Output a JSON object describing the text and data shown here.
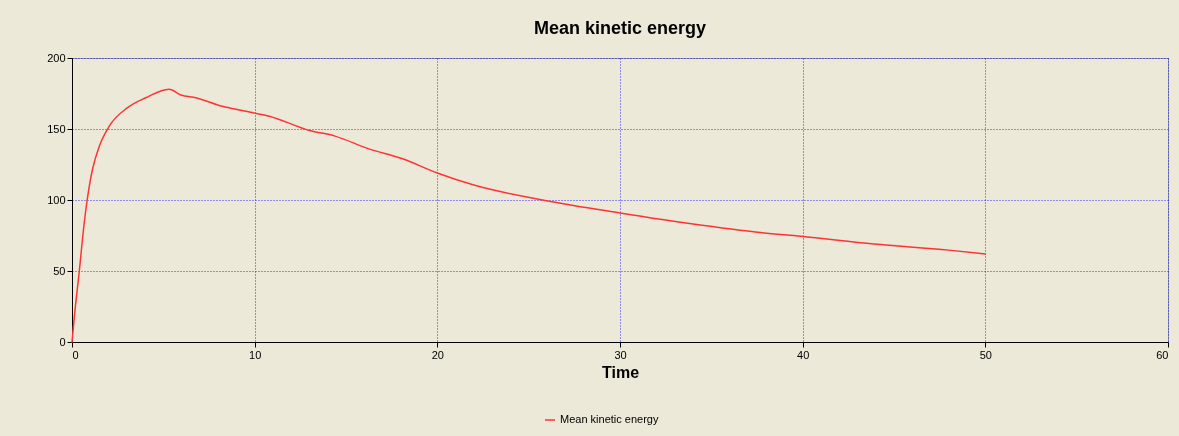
{
  "chart_data": {
    "type": "line",
    "title": "Mean kinetic energy",
    "xlabel": "Time",
    "xlim": [
      0,
      60
    ],
    "xticks": [
      0,
      10,
      20,
      30,
      40,
      50,
      60
    ],
    "ylim": [
      0,
      200
    ],
    "yticks": [
      0,
      50,
      100,
      150,
      200
    ],
    "grid": true,
    "legend": "bottom",
    "line_style": "solid",
    "marker": "none",
    "series": [
      {
        "name": "Mean kinetic energy",
        "color": "#ff3333",
        "x": [
          0,
          0.13,
          0.4,
          0.67,
          0.95,
          1.13,
          1.5,
          2.04,
          3.04,
          4.04,
          5.32,
          5.96,
          6.78,
          8.23,
          9.3,
          10.8,
          13,
          14.4,
          16.25,
          18.1,
          20,
          22,
          25.9,
          30,
          33.9,
          37.8,
          39.9,
          43.9,
          48,
          50
        ],
        "values": [
          0,
          18,
          50,
          84,
          110,
          122,
          138,
          152,
          165,
          172,
          178,
          174,
          172,
          166,
          163,
          159,
          149,
          145,
          136,
          129,
          119,
          110.5,
          99.7,
          90.9,
          83.3,
          77,
          74.5,
          69,
          64.7,
          62
        ]
      }
    ]
  }
}
